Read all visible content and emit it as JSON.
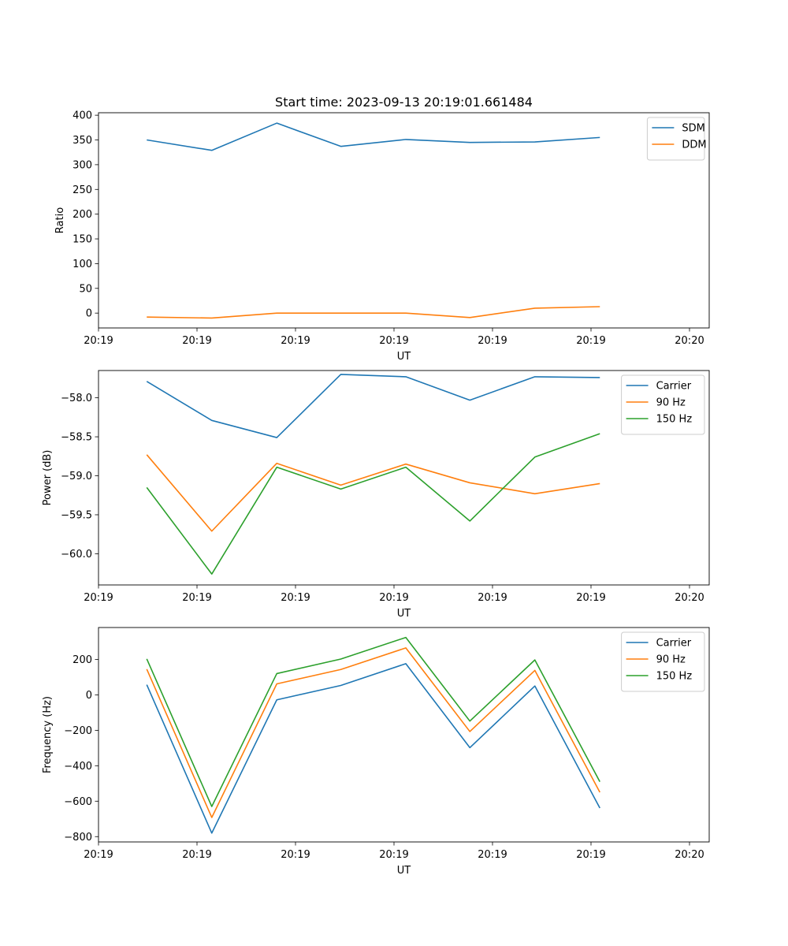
{
  "chart_data": [
    {
      "type": "line",
      "title": "Start time: 2023-09-13 20:19:01.661484",
      "xlabel": "UT",
      "ylabel": "Ratio",
      "xlim": [
        0,
        6.2
      ],
      "ylim": [
        -30,
        405
      ],
      "xticks": [
        0,
        1,
        2,
        3,
        4,
        5,
        6
      ],
      "xtick_labels": [
        "20:19",
        "20:19",
        "20:19",
        "20:19",
        "20:19",
        "20:19",
        "20:20"
      ],
      "yticks": [
        0,
        50,
        100,
        150,
        200,
        250,
        300,
        350,
        400
      ],
      "ytick_labels": [
        "0",
        "50",
        "100",
        "150",
        "200",
        "250",
        "300",
        "350",
        "400"
      ],
      "x": [
        0.49,
        1.15,
        1.81,
        2.46,
        3.12,
        3.77,
        4.43,
        5.09
      ],
      "legend_position": "upper right",
      "series": [
        {
          "name": "SDM",
          "color": "#1f77b4",
          "values": [
            350,
            329,
            384,
            337,
            351,
            345,
            346,
            355
          ]
        },
        {
          "name": "DDM",
          "color": "#ff7f0e",
          "values": [
            -8,
            -10,
            0,
            0,
            0,
            -9,
            10,
            13
          ]
        }
      ]
    },
    {
      "type": "line",
      "title": "",
      "xlabel": "UT",
      "ylabel": "Power (dB)",
      "xlim": [
        0,
        6.2
      ],
      "ylim": [
        -60.4,
        -57.65
      ],
      "xticks": [
        0,
        1,
        2,
        3,
        4,
        5,
        6
      ],
      "xtick_labels": [
        "20:19",
        "20:19",
        "20:19",
        "20:19",
        "20:19",
        "20:19",
        "20:20"
      ],
      "yticks": [
        -60.0,
        -59.5,
        -59.0,
        -58.5,
        -58.0
      ],
      "ytick_labels": [
        "−60.0",
        "−59.5",
        "−59.0",
        "−58.5",
        "−58.0"
      ],
      "x": [
        0.49,
        1.15,
        1.81,
        2.46,
        3.12,
        3.77,
        4.43,
        5.09
      ],
      "legend_position": "upper right",
      "series": [
        {
          "name": "Carrier",
          "color": "#1f77b4",
          "values": [
            -57.79,
            -58.29,
            -58.51,
            -57.7,
            -57.73,
            -58.03,
            -57.73,
            -57.74
          ]
        },
        {
          "name": "90 Hz",
          "color": "#ff7f0e",
          "values": [
            -58.73,
            -59.71,
            -58.84,
            -59.12,
            -58.85,
            -59.09,
            -59.23,
            -59.1
          ]
        },
        {
          "name": "150 Hz",
          "color": "#2ca02c",
          "values": [
            -59.15,
            -60.26,
            -58.89,
            -59.17,
            -58.89,
            -59.58,
            -58.76,
            -58.46
          ]
        }
      ]
    },
    {
      "type": "line",
      "title": "",
      "xlabel": "UT",
      "ylabel": "Frequency (Hz)",
      "xlim": [
        0,
        6.2
      ],
      "ylim": [
        -830,
        380
      ],
      "xticks": [
        0,
        1,
        2,
        3,
        4,
        5,
        6
      ],
      "xtick_labels": [
        "20:19",
        "20:19",
        "20:19",
        "20:19",
        "20:19",
        "20:19",
        "20:20"
      ],
      "yticks": [
        -800,
        -600,
        -400,
        -200,
        0,
        200
      ],
      "ytick_labels": [
        "−800",
        "−600",
        "−400",
        "−200",
        "0",
        "200"
      ],
      "x": [
        0.49,
        1.15,
        1.81,
        2.46,
        3.12,
        3.77,
        4.43,
        5.09
      ],
      "legend_position": "upper right",
      "series": [
        {
          "name": "Carrier",
          "color": "#1f77b4",
          "values": [
            57,
            -780,
            -28,
            53,
            176,
            -298,
            50,
            -639
          ]
        },
        {
          "name": "90 Hz",
          "color": "#ff7f0e",
          "values": [
            145,
            -692,
            62,
            143,
            265,
            -207,
            138,
            -550
          ]
        },
        {
          "name": "150 Hz",
          "color": "#2ca02c",
          "values": [
            203,
            -630,
            120,
            202,
            324,
            -148,
            197,
            -490
          ]
        }
      ]
    }
  ]
}
